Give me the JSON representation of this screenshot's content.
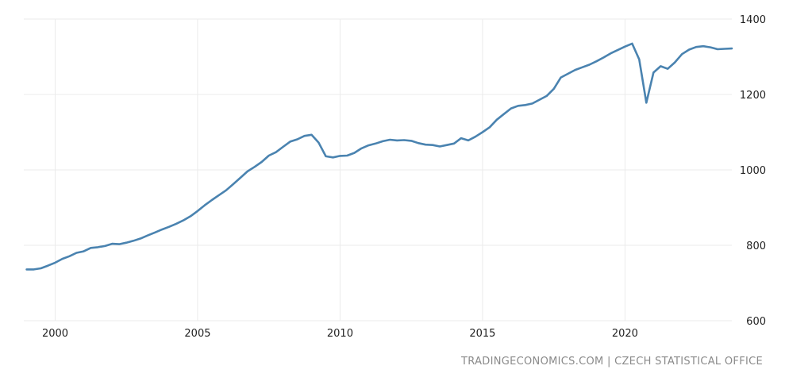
{
  "source": "TRADINGECONOMICS.COM | CZECH STATISTICAL OFFICE",
  "colors": {
    "line": "#4a83b0",
    "grid": "#ebebeb",
    "tick_text": "#222222",
    "source_text": "#8a8a8a"
  },
  "chart_data": {
    "type": "line",
    "title": "",
    "xlabel": "",
    "ylabel": "",
    "grid": true,
    "y_axis_side": "right",
    "legend": "none",
    "xlim": [
      1998.9,
      2023.75
    ],
    "ylim": [
      600,
      1400
    ],
    "x_ticks": [
      2000,
      2005,
      2010,
      2015,
      2020
    ],
    "y_ticks": [
      600,
      800,
      1000,
      1200,
      1400
    ],
    "series": [
      {
        "x": [
          1999.0,
          1999.25,
          1999.5,
          1999.75,
          2000.0,
          2000.25,
          2000.5,
          2000.75,
          2001.0,
          2001.25,
          2001.5,
          2001.75,
          2002.0,
          2002.25,
          2002.5,
          2002.75,
          2003.0,
          2003.25,
          2003.5,
          2003.75,
          2004.0,
          2004.25,
          2004.5,
          2004.75,
          2005.0,
          2005.25,
          2005.5,
          2005.75,
          2006.0,
          2006.25,
          2006.5,
          2006.75,
          2007.0,
          2007.25,
          2007.5,
          2007.75,
          2008.0,
          2008.25,
          2008.5,
          2008.75,
          2009.0,
          2009.25,
          2009.5,
          2009.75,
          2010.0,
          2010.25,
          2010.5,
          2010.75,
          2011.0,
          2011.25,
          2011.5,
          2011.75,
          2012.0,
          2012.25,
          2012.5,
          2012.75,
          2013.0,
          2013.25,
          2013.5,
          2013.75,
          2014.0,
          2014.25,
          2014.5,
          2014.75,
          2015.0,
          2015.25,
          2015.5,
          2015.75,
          2016.0,
          2016.25,
          2016.5,
          2016.75,
          2017.0,
          2017.25,
          2017.5,
          2017.75,
          2018.0,
          2018.25,
          2018.5,
          2018.75,
          2019.0,
          2019.25,
          2019.5,
          2019.75,
          2020.0,
          2020.25,
          2020.5,
          2020.75,
          2021.0,
          2021.25,
          2021.5,
          2021.75,
          2022.0,
          2022.25,
          2022.5,
          2022.75,
          2023.0,
          2023.25,
          2023.5,
          2023.75
        ],
        "values": [
          736,
          736,
          739,
          746,
          754,
          764,
          771,
          780,
          784,
          793,
          795,
          798,
          804,
          803,
          807,
          812,
          818,
          826,
          834,
          842,
          849,
          857,
          866,
          877,
          891,
          906,
          920,
          933,
          946,
          962,
          979,
          996,
          1008,
          1021,
          1038,
          1047,
          1061,
          1075,
          1081,
          1090,
          1093,
          1072,
          1036,
          1033,
          1037,
          1038,
          1045,
          1057,
          1065,
          1070,
          1076,
          1080,
          1078,
          1079,
          1077,
          1071,
          1067,
          1066,
          1062,
          1066,
          1070,
          1084,
          1078,
          1088,
          1100,
          1113,
          1133,
          1148,
          1163,
          1170,
          1172,
          1176,
          1186,
          1196,
          1215,
          1245,
          1255,
          1265,
          1272,
          1279,
          1288,
          1298,
          1309,
          1318,
          1327,
          1335,
          1293,
          1178,
          1258,
          1275,
          1268,
          1285,
          1307,
          1319,
          1326,
          1328,
          1325,
          1320,
          1321,
          1322
        ]
      }
    ]
  }
}
